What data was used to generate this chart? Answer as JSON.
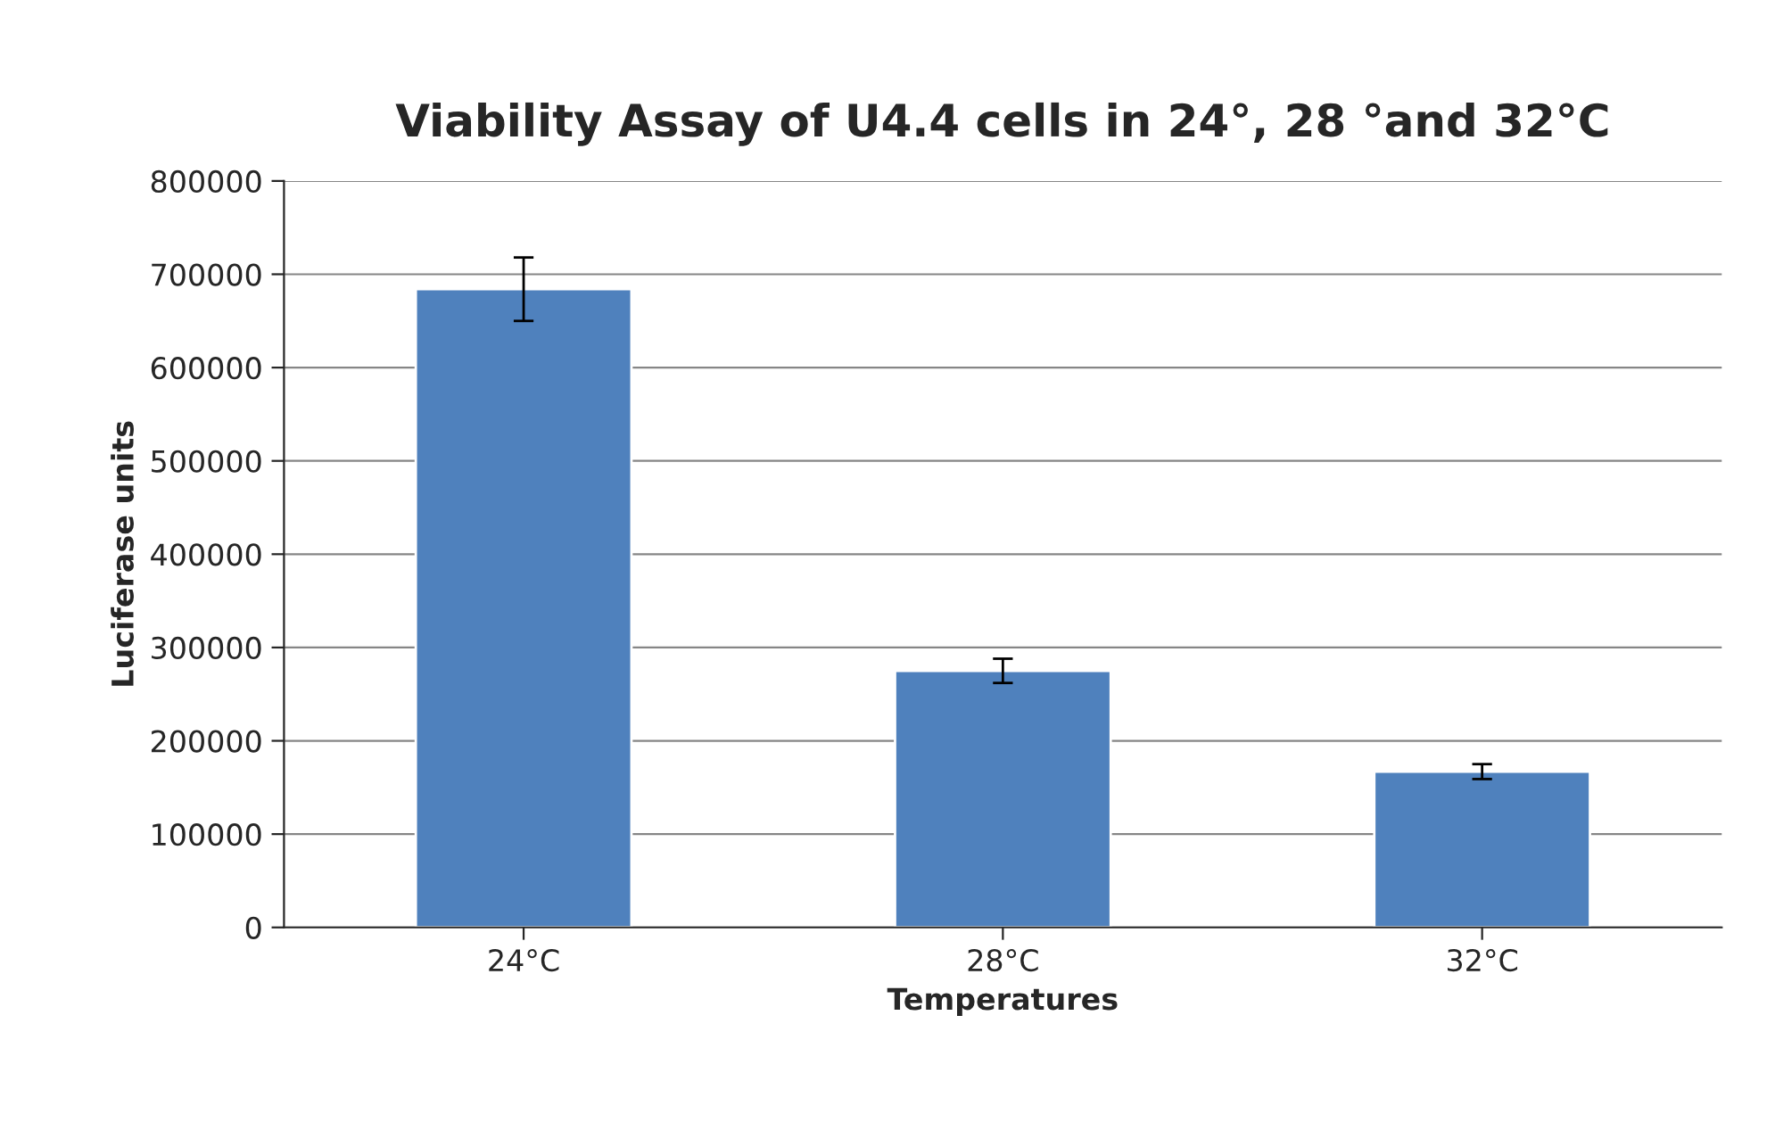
{
  "chart_data": {
    "type": "bar",
    "title": "Viability Assay of U4.4 cells in 24°, 28 °and 32°C",
    "xlabel": "Temperatures",
    "ylabel": "Luciferase units",
    "categories": [
      "24°C",
      "28°C",
      "32°C"
    ],
    "values": [
      684000,
      275000,
      167000
    ],
    "errors": [
      34000,
      13000,
      8000
    ],
    "color": "#4f81bd",
    "ylim": [
      0,
      800000
    ],
    "yticks": [
      0,
      100000,
      200000,
      300000,
      400000,
      500000,
      600000,
      700000,
      800000
    ],
    "grid": "y",
    "legend": false
  }
}
